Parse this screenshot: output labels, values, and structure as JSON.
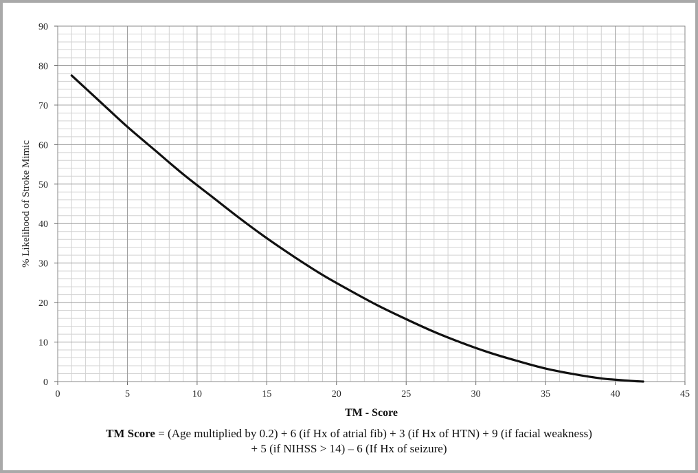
{
  "chart_data": {
    "type": "line",
    "xlabel": "TM - Score",
    "ylabel": "% Likelihood of Stroke Mimic",
    "xlim": [
      0,
      45
    ],
    "ylim": [
      0,
      90
    ],
    "x_ticks": [
      "0",
      "5",
      "10",
      "15",
      "20",
      "25",
      "30",
      "35",
      "40",
      "45"
    ],
    "y_ticks": [
      "0",
      "10",
      "20",
      "30",
      "40",
      "50",
      "60",
      "70",
      "80",
      "90"
    ],
    "grid": "major and minor",
    "series": [
      {
        "color": "#111111",
        "x": [
          1,
          3,
          5,
          7,
          9,
          11,
          13,
          15,
          17,
          19,
          21,
          23,
          25,
          27,
          29,
          31,
          33,
          35,
          37,
          39,
          41,
          42
        ],
        "y": [
          77.5,
          71,
          64.5,
          58.5,
          52.5,
          47,
          41.5,
          36.3,
          31.5,
          27,
          23,
          19.2,
          15.8,
          12.6,
          9.8,
          7.3,
          5.2,
          3.3,
          1.9,
          0.8,
          0.2,
          0
        ]
      }
    ]
  },
  "formula": {
    "label": "TM Score",
    "line1": " = (Age multiplied by 0.2) + 6 (if Hx of atrial fib) + 3 (if Hx of HTN) + 9 (if facial weakness)",
    "line2": "+ 5 (if NIHSS > 14) – 6 (If Hx of seizure)"
  }
}
